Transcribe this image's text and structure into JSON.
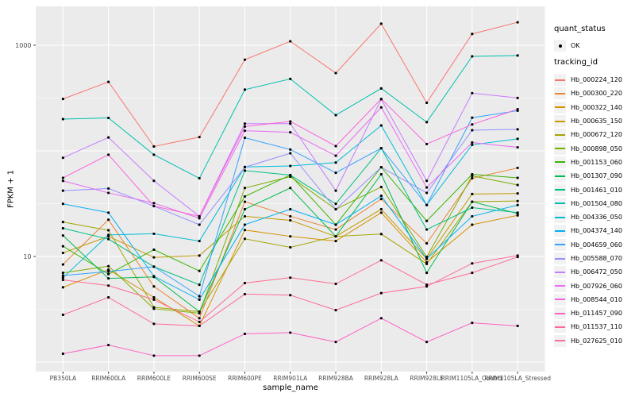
{
  "figure": {
    "background": "#FFFFFF",
    "panel_bg": "#EBEBEB",
    "grid_color": "#FFFFFF",
    "point_color": "#000000",
    "axis_text_color": "#4D4D4D",
    "tick_color": "#333333"
  },
  "axes": {
    "y_title": "FPKM + 1",
    "x_title": "sample_name",
    "y_tick_labels": [
      "10",
      "1000"
    ]
  },
  "legend": {
    "quant_title": "quant_status",
    "quant_items": [
      {
        "label": "OK",
        "glyph": "point",
        "color": "#000000"
      }
    ],
    "tracking_title": "tracking_id"
  },
  "chart_data": {
    "type": "line",
    "title": "",
    "xlabel": "sample_name",
    "ylabel": "FPKM + 1",
    "y_scale": "log10",
    "ylim": [
      1,
      2000
    ],
    "y_major_ticks": [
      10,
      1000
    ],
    "y_gridlines": [
      1,
      10,
      100,
      1000
    ],
    "grid": true,
    "legend_position": "right",
    "marker": "black-point",
    "quant_status": "OK",
    "categories": [
      "PB350LA",
      "RRIM600LA",
      "RRIM600LE",
      "RRIM600SE",
      "RRIM600PE",
      "RRIM901LA",
      "RRIM928BA",
      "RRIM928LA",
      "RRIM928LE",
      "RRIM1105LA_Control",
      "RRIM1105LA_Stressed"
    ],
    "series": [
      {
        "name": "Hb_000224_120",
        "color": "#F8766D",
        "values": [
          310,
          450,
          110,
          135,
          730,
          1090,
          545,
          1600,
          285,
          1280,
          1650
        ]
      },
      {
        "name": "Hb_000300_220",
        "color": "#EA8331",
        "values": [
          8.4,
          22.3,
          5.2,
          2.6,
          33,
          24,
          18,
          35,
          13.3,
          55,
          69
        ]
      },
      {
        "name": "Hb_000322_140",
        "color": "#D89000",
        "values": [
          5.1,
          7.5,
          4.1,
          2.2,
          17.8,
          15.5,
          14,
          26,
          8.8,
          20,
          24.5
        ]
      },
      {
        "name": "Hb_000635_150",
        "color": "#C09B00",
        "values": [
          10.8,
          15.5,
          9.8,
          10.2,
          24,
          22,
          15.5,
          28,
          9.5,
          39,
          39.5
        ]
      },
      {
        "name": "Hb_000672_120",
        "color": "#A3A500",
        "values": [
          21.2,
          17.7,
          3.3,
          3.0,
          14.7,
          12.2,
          15.5,
          16.3,
          8.5,
          33,
          33.5
        ]
      },
      {
        "name": "Hb_000898_050",
        "color": "#7CAE00",
        "values": [
          7.0,
          8.1,
          3.2,
          2.9,
          44.5,
          57,
          28,
          45.5,
          9.9,
          58,
          47.5
        ]
      },
      {
        "name": "Hb_001153_060",
        "color": "#39B600",
        "values": [
          12.5,
          6.8,
          11.6,
          7.3,
          37,
          59,
          20,
          70,
          21.7,
          60,
          55.5
        ]
      },
      {
        "name": "Hb_001307_090",
        "color": "#00BB4E",
        "values": [
          15.8,
          6.2,
          6.4,
          3.0,
          28,
          44.5,
          15.5,
          60,
          7.0,
          33,
          25.5
        ]
      },
      {
        "name": "Hb_001461_010",
        "color": "#00C087",
        "values": [
          18.5,
          14.6,
          8.0,
          5.4,
          65,
          59,
          31.5,
          106,
          18,
          29,
          26
        ]
      },
      {
        "name": "Hb_001504_080",
        "color": "#00C0AF",
        "values": [
          200,
          205,
          92,
          55,
          380,
          480,
          218,
          390,
          187,
          785,
          800
        ]
      },
      {
        "name": "Hb_004336_050",
        "color": "#00BCD8",
        "values": [
          6.3,
          16,
          16.4,
          14,
          70.5,
          72,
          77.5,
          174,
          30.7,
          114,
          130
        ]
      },
      {
        "name": "Hb_004374_140",
        "color": "#00B0F6",
        "values": [
          31.5,
          26,
          6.5,
          3.9,
          20,
          28,
          20,
          37.5,
          9.5,
          24,
          30.7
        ]
      },
      {
        "name": "Hb_004659_060",
        "color": "#35A2FF",
        "values": [
          6.6,
          7.2,
          8.0,
          4.2,
          133,
          103,
          62,
          106,
          30.7,
          206,
          240
        ]
      },
      {
        "name": "Hb_005588_070",
        "color": "#9590FF",
        "values": [
          42,
          44,
          30,
          20,
          70,
          95,
          28,
          70,
          40,
          157,
          160
        ]
      },
      {
        "name": "Hb_006472_050",
        "color": "#C77CFF",
        "values": [
          86,
          134,
          52,
          24,
          181,
          181,
          42,
          308,
          52,
          352,
          317
        ]
      },
      {
        "name": "Hb_007926_060",
        "color": "#E76BF3",
        "values": [
          52,
          40,
          32,
          23,
          155,
          150,
          90,
          258,
          45,
          120,
          108
        ]
      },
      {
        "name": "Hb_008544_010",
        "color": "#FA62DB",
        "values": [
          55.5,
          92,
          30,
          24,
          170,
          190,
          111,
          310,
          116,
          178,
          248
        ]
      },
      {
        "name": "Hb_011457_090",
        "color": "#FF61C3",
        "values": [
          1.2,
          1.45,
          1.15,
          1.15,
          1.85,
          1.9,
          1.55,
          2.6,
          1.55,
          2.35,
          2.2
        ]
      },
      {
        "name": "Hb_011537_110",
        "color": "#FF689E",
        "values": [
          2.8,
          4.1,
          2.3,
          2.2,
          4.4,
          4.3,
          3.1,
          4.5,
          5.2,
          8.6,
          10.2
        ]
      },
      {
        "name": "Hb_027625_010",
        "color": "#FF6C91",
        "values": [
          6.0,
          5.3,
          3.9,
          2.4,
          5.6,
          6.3,
          5.5,
          9.2,
          5.4,
          7.0,
          9.9
        ]
      }
    ]
  }
}
